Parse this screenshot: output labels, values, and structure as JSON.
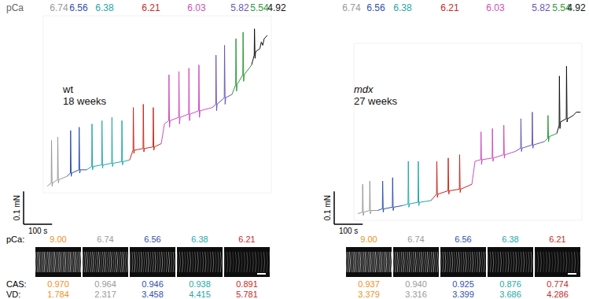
{
  "chart_data": [
    {
      "type": "line",
      "title": "wt",
      "subtitle": "18 weeks",
      "tick_labels": false,
      "xlim": [
        0,
        800
      ],
      "ylim": [
        -0.02,
        0.52
      ],
      "scale_bar": {
        "x": 100,
        "x_label": "100 s",
        "y": 0.1,
        "y_label": "0.1 mN"
      },
      "series": [
        {
          "name": "6.74",
          "color": "#999999",
          "x": [
            14,
            28,
            29,
            31,
            33,
            50,
            51,
            53,
            55,
            83
          ],
          "values": [
            0.0,
            0.01,
            0.14,
            0.0,
            0.01,
            0.02,
            0.15,
            0.01,
            0.02,
            0.03
          ]
        },
        {
          "name": "6.56",
          "color": "#2f4fae",
          "x": [
            83,
            95,
            96,
            98,
            100,
            125,
            126,
            128,
            130,
            152
          ],
          "values": [
            0.03,
            0.04,
            0.17,
            0.03,
            0.04,
            0.05,
            0.18,
            0.04,
            0.05,
            0.05
          ]
        },
        {
          "name": "6.38",
          "color": "#25a7a7",
          "x": [
            152,
            170,
            171,
            173,
            175,
            205,
            206,
            208,
            210,
            240,
            241,
            243,
            245,
            275,
            276,
            278,
            280,
            303
          ],
          "values": [
            0.05,
            0.06,
            0.19,
            0.05,
            0.06,
            0.065,
            0.2,
            0.055,
            0.065,
            0.07,
            0.21,
            0.06,
            0.07,
            0.075,
            0.2,
            0.065,
            0.075,
            0.08
          ]
        },
        {
          "name": "6.21",
          "color": "#c8281e",
          "x": [
            303,
            315,
            316,
            318,
            320,
            350,
            351,
            353,
            355,
            385,
            386,
            388,
            390,
            414
          ],
          "values": [
            0.08,
            0.11,
            0.24,
            0.1,
            0.11,
            0.115,
            0.25,
            0.105,
            0.115,
            0.12,
            0.24,
            0.11,
            0.12,
            0.13
          ]
        },
        {
          "name": "6.03",
          "color": "#cf4fbd",
          "x": [
            414,
            425,
            440,
            441,
            443,
            445,
            475,
            476,
            478,
            480,
            510,
            511,
            513,
            515,
            545,
            546,
            548,
            550,
            593
          ],
          "values": [
            0.13,
            0.19,
            0.2,
            0.34,
            0.18,
            0.2,
            0.21,
            0.35,
            0.19,
            0.21,
            0.22,
            0.36,
            0.2,
            0.22,
            0.23,
            0.37,
            0.21,
            0.23,
            0.24
          ]
        },
        {
          "name": "5.82",
          "color": "#6a56b4",
          "x": [
            593,
            605,
            606,
            608,
            610,
            635,
            636,
            638,
            640,
            662
          ],
          "values": [
            0.24,
            0.25,
            0.4,
            0.23,
            0.25,
            0.27,
            0.43,
            0.25,
            0.27,
            0.28
          ]
        },
        {
          "name": "5.54",
          "color": "#2f9a3a",
          "x": [
            662,
            675,
            676,
            678,
            680,
            700,
            701,
            703,
            705,
            731
          ],
          "values": [
            0.28,
            0.31,
            0.45,
            0.29,
            0.31,
            0.34,
            0.47,
            0.32,
            0.34,
            0.37
          ]
        },
        {
          "name": "4.92",
          "color": "#111111",
          "x": [
            731,
            740,
            741,
            743,
            745,
            760,
            765,
            770,
            775,
            786
          ],
          "values": [
            0.37,
            0.4,
            0.48,
            0.39,
            0.41,
            0.42,
            0.44,
            0.43,
            0.45,
            0.46
          ]
        }
      ]
    },
    {
      "type": "line",
      "title": "mdx",
      "subtitle": "27 weeks",
      "tick_labels": false,
      "xlim": [
        0,
        800
      ],
      "ylim": [
        -0.02,
        0.52
      ],
      "scale_bar": {
        "x": 100,
        "x_label": "100 s",
        "y": 0.1,
        "y_label": "0.1 mN"
      },
      "series": [
        {
          "name": "6.74",
          "color": "#999999",
          "x": [
            14,
            30,
            31,
            33,
            35,
            55,
            56,
            58,
            60,
            83
          ],
          "values": [
            0.0,
            0.005,
            0.09,
            -0.005,
            0.005,
            0.01,
            0.1,
            0.0,
            0.01,
            0.01
          ]
        },
        {
          "name": "6.56",
          "color": "#2f4fae",
          "x": [
            83,
            100,
            101,
            103,
            105,
            135,
            136,
            138,
            140,
            171
          ],
          "values": [
            0.01,
            0.015,
            0.1,
            0.005,
            0.015,
            0.02,
            0.11,
            0.01,
            0.02,
            0.025
          ]
        },
        {
          "name": "6.38",
          "color": "#25a7a7",
          "x": [
            171,
            190,
            191,
            193,
            195,
            225,
            226,
            228,
            230,
            270
          ],
          "values": [
            0.025,
            0.03,
            0.16,
            0.02,
            0.03,
            0.035,
            0.16,
            0.025,
            0.035,
            0.04
          ]
        },
        {
          "name": "6.21",
          "color": "#c8281e",
          "x": [
            270,
            290,
            291,
            293,
            295,
            330,
            331,
            333,
            335,
            370,
            371,
            373,
            375,
            414
          ],
          "values": [
            0.04,
            0.06,
            0.16,
            0.05,
            0.06,
            0.07,
            0.17,
            0.06,
            0.07,
            0.075,
            0.18,
            0.065,
            0.075,
            0.09
          ]
        },
        {
          "name": "6.03",
          "color": "#cf4fbd",
          "x": [
            414,
            425,
            445,
            446,
            448,
            450,
            485,
            486,
            488,
            490,
            525,
            526,
            528,
            530,
            566
          ],
          "values": [
            0.09,
            0.16,
            0.165,
            0.25,
            0.15,
            0.165,
            0.17,
            0.26,
            0.16,
            0.17,
            0.18,
            0.27,
            0.17,
            0.18,
            0.19
          ]
        },
        {
          "name": "5.82",
          "color": "#6a56b4",
          "x": [
            566,
            585,
            586,
            588,
            590,
            625,
            626,
            628,
            630,
            668
          ],
          "values": [
            0.19,
            0.2,
            0.29,
            0.19,
            0.2,
            0.21,
            0.31,
            0.2,
            0.21,
            0.22
          ]
        },
        {
          "name": "5.54",
          "color": "#2f9a3a",
          "x": [
            668,
            680,
            681,
            683,
            685,
            712
          ],
          "values": [
            0.22,
            0.23,
            0.3,
            0.22,
            0.235,
            0.245
          ]
        },
        {
          "name": "4.92",
          "color": "#111111",
          "x": [
            712,
            720,
            721,
            723,
            725,
            745,
            746,
            748,
            750,
            770,
            780,
            795
          ],
          "values": [
            0.245,
            0.27,
            0.42,
            0.26,
            0.28,
            0.29,
            0.45,
            0.28,
            0.29,
            0.3,
            0.31,
            0.31
          ]
        }
      ]
    }
  ],
  "top_label": "pCa",
  "images": {
    "pca_label": "pCa:",
    "cas_label": "CAS:",
    "vd_label": "VD:",
    "panels": [
      {
        "pca": [
          "9.00",
          "6.74",
          "6.56",
          "6.38",
          "6.21"
        ],
        "colors": [
          "#f0901e",
          "#999999",
          "#2f4fae",
          "#25a7a7",
          "#c8281e"
        ],
        "cas": {
          "values": [
            0.97,
            0.964,
            0.946,
            0.938,
            0.891
          ],
          "value_labels": [
            "0.970",
            "0.964",
            "0.946",
            "0.938",
            "0.891"
          ]
        },
        "vd": {
          "values": [
            1.784,
            2.317,
            3.458,
            4.415,
            5.781
          ],
          "value_labels": [
            "1.784",
            "2.317",
            "3.458",
            "4.415",
            "5.781"
          ]
        }
      },
      {
        "pca": [
          "9.00",
          "6.74",
          "6.56",
          "6.38",
          "6.21"
        ],
        "colors": [
          "#f0901e",
          "#999999",
          "#2f4fae",
          "#25a7a7",
          "#c8281e"
        ],
        "cas": {
          "values": [
            0.937,
            0.94,
            0.925,
            0.876,
            0.774
          ],
          "value_labels": [
            "0.937",
            "0.940",
            "0.925",
            "0.876",
            "0.774"
          ]
        },
        "vd": {
          "values": [
            3.379,
            3.316,
            3.399,
            3.686,
            4.286
          ],
          "value_labels": [
            "3.379",
            "3.316",
            "3.399",
            "3.686",
            "4.286"
          ]
        }
      }
    ]
  }
}
